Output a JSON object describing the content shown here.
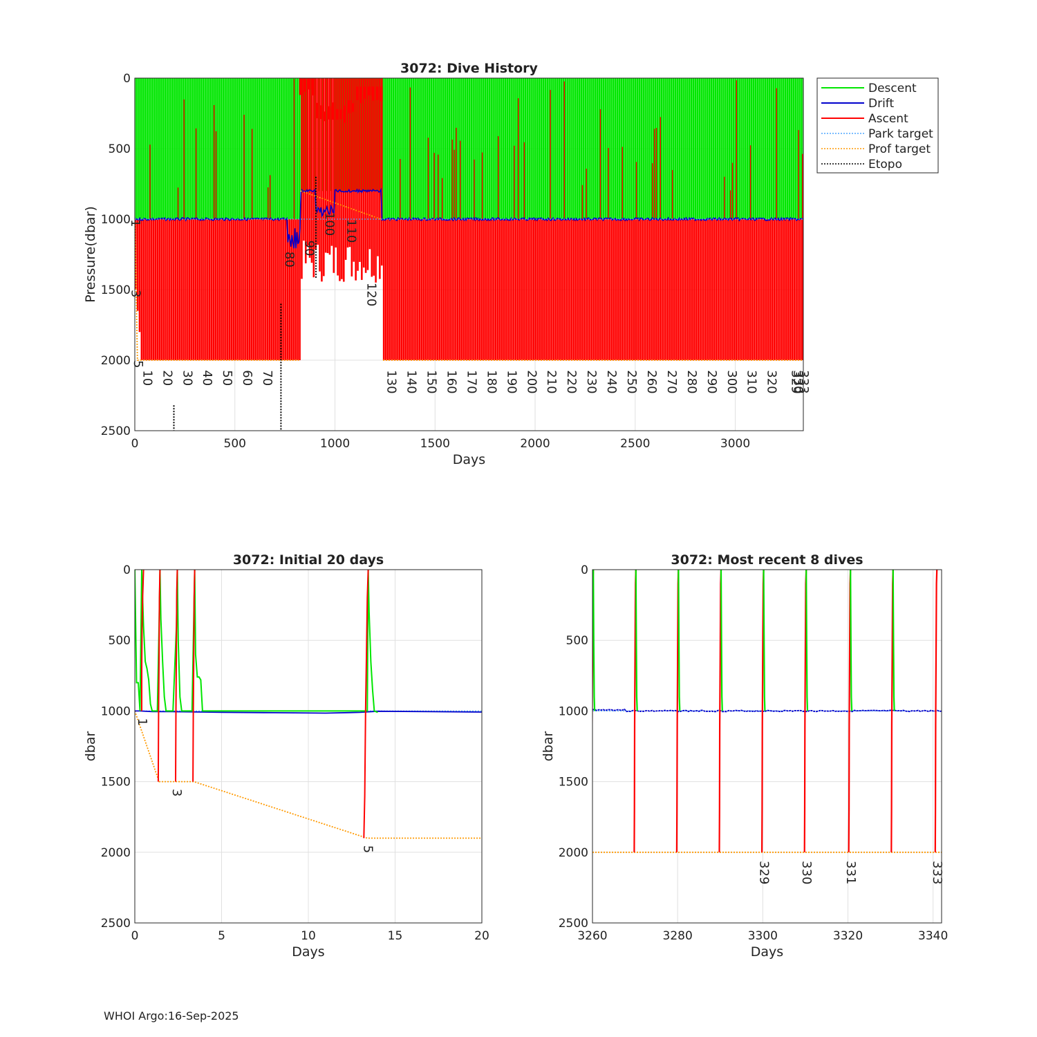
{
  "footer": "WHOI Argo:16-Sep-2025",
  "colors": {
    "descent": "#00e600",
    "drift": "#0000cc",
    "ascent": "#ff0000",
    "park_target": "#4da6ff",
    "prof_target": "#ff9900",
    "etopo": "#000000",
    "grid": "#e0e0e0"
  },
  "legend": [
    {
      "label": "Descent",
      "key": "descent",
      "dash": "solid"
    },
    {
      "label": "Drift",
      "key": "drift",
      "dash": "solid"
    },
    {
      "label": "Ascent",
      "key": "ascent",
      "dash": "solid"
    },
    {
      "label": "Park target",
      "key": "park_target",
      "dash": "dotted"
    },
    {
      "label": "Prof target",
      "key": "prof_target",
      "dash": "dotted"
    },
    {
      "label": "Etopo",
      "key": "etopo",
      "dash": "dotted"
    }
  ],
  "chart_data": [
    {
      "type": "line",
      "title": "3072: Dive History",
      "xlabel": "Days",
      "ylabel": "Pressure(dbar)",
      "xlim": [
        0,
        3340
      ],
      "ylim": [
        0,
        2500
      ],
      "xticks": [
        0,
        500,
        1000,
        1500,
        2000,
        2500,
        3000
      ],
      "yticks": [
        0,
        500,
        1000,
        1500,
        2000,
        2500
      ],
      "cycle_labels": [
        {
          "text": "1",
          "x": 0,
          "y": 1000
        },
        {
          "text": "3",
          "x": 2,
          "y": 1500
        },
        {
          "text": "5",
          "x": 13,
          "y": 2000
        },
        {
          "text": "10",
          "x": 60,
          "y": 2070
        },
        {
          "text": "20",
          "x": 160,
          "y": 2070
        },
        {
          "text": "30",
          "x": 260,
          "y": 2070
        },
        {
          "text": "40",
          "x": 360,
          "y": 2070
        },
        {
          "text": "50",
          "x": 460,
          "y": 2070
        },
        {
          "text": "60",
          "x": 560,
          "y": 2070
        },
        {
          "text": "70",
          "x": 660,
          "y": 2070
        },
        {
          "text": "80",
          "x": 770,
          "y": 1230
        },
        {
          "text": "90",
          "x": 870,
          "y": 1150
        },
        {
          "text": "100",
          "x": 970,
          "y": 950
        },
        {
          "text": "110",
          "x": 1080,
          "y": 1000
        },
        {
          "text": "120",
          "x": 1180,
          "y": 1450
        },
        {
          "text": "130",
          "x": 1280,
          "y": 2070
        },
        {
          "text": "140",
          "x": 1380,
          "y": 2070
        },
        {
          "text": "150",
          "x": 1480,
          "y": 2070
        },
        {
          "text": "160",
          "x": 1580,
          "y": 2070
        },
        {
          "text": "170",
          "x": 1680,
          "y": 2070
        },
        {
          "text": "180",
          "x": 1780,
          "y": 2070
        },
        {
          "text": "190",
          "x": 1880,
          "y": 2070
        },
        {
          "text": "200",
          "x": 1980,
          "y": 2070
        },
        {
          "text": "210",
          "x": 2080,
          "y": 2070
        },
        {
          "text": "220",
          "x": 2180,
          "y": 2070
        },
        {
          "text": "230",
          "x": 2280,
          "y": 2070
        },
        {
          "text": "240",
          "x": 2380,
          "y": 2070
        },
        {
          "text": "250",
          "x": 2480,
          "y": 2070
        },
        {
          "text": "260",
          "x": 2580,
          "y": 2070
        },
        {
          "text": "270",
          "x": 2680,
          "y": 2070
        },
        {
          "text": "280",
          "x": 2780,
          "y": 2070
        },
        {
          "text": "290",
          "x": 2880,
          "y": 2070
        },
        {
          "text": "300",
          "x": 2980,
          "y": 2070
        },
        {
          "text": "310",
          "x": 3080,
          "y": 2070
        },
        {
          "text": "320",
          "x": 3180,
          "y": 2070
        },
        {
          "text": "329",
          "x": 3300,
          "y": 2070
        },
        {
          "text": "330",
          "x": 3310,
          "y": 2070
        },
        {
          "text": "333",
          "x": 3340,
          "y": 2070
        }
      ],
      "series": {
        "park_target_dbar": 1000,
        "prof_target_dbar_segments": [
          {
            "x": [
              0,
              13,
              820
            ],
            "y": [
              1000,
              2000,
              2000
            ]
          },
          {
            "x": [
              830,
              1230
            ],
            "y": [
              800,
              1000
            ]
          },
          {
            "x": [
              1240,
              3340
            ],
            "y": [
              2000,
              2000
            ]
          }
        ],
        "cycle_interval_days": 10,
        "drift_depth_normal": 1000,
        "shallow_drift_range_days": [
          830,
          1230
        ],
        "shallow_drift_depth": 800,
        "profile_depth_normal": 2000,
        "profile_depth_shallow": 1450,
        "etopo_segments": [
          {
            "x": [
              195,
              195
            ],
            "y": [
              2320,
              2500
            ]
          },
          {
            "x": [
              730,
              730
            ],
            "y": [
              1600,
              2500
            ]
          },
          {
            "x": [
              905,
              905
            ],
            "y": [
              700,
              1420
            ]
          }
        ]
      }
    },
    {
      "type": "line",
      "title": "3072: Initial 20 days",
      "xlabel": "Days",
      "ylabel": "dbar",
      "xlim": [
        0,
        20
      ],
      "ylim": [
        0,
        2500
      ],
      "xticks": [
        0,
        5,
        10,
        15,
        20
      ],
      "yticks": [
        0,
        500,
        1000,
        1500,
        2000,
        2500
      ],
      "cycle_labels": [
        {
          "text": "1",
          "x": 0.4,
          "y": 1050
        },
        {
          "text": "3",
          "x": 2.4,
          "y": 1550
        },
        {
          "text": "5",
          "x": 13.4,
          "y": 1950
        }
      ],
      "series": {
        "descent_x": [
          0.0,
          0.1,
          0.2,
          0.3,
          0.4,
          0.5,
          0.6,
          0.7,
          0.8,
          0.9,
          1.0,
          1.1,
          1.2,
          1.3,
          1.4,
          1.45,
          1.5,
          1.6,
          1.7,
          1.8,
          2.0,
          2.2,
          2.4,
          2.45,
          2.5,
          2.6,
          2.7,
          2.8,
          3.0,
          3.3,
          3.45,
          3.5,
          3.6,
          3.7,
          3.8,
          3.9,
          4.0,
          4.1,
          13.4,
          13.45,
          13.5,
          13.6,
          13.7,
          13.8,
          14.0
        ],
        "descent_y": [
          0,
          800,
          800,
          1000,
          0,
          400,
          650,
          700,
          780,
          950,
          1000,
          1000,
          1000,
          1000,
          400,
          0,
          350,
          650,
          900,
          1000,
          1000,
          1000,
          400,
          0,
          500,
          900,
          1000,
          1000,
          1000,
          1000,
          0,
          600,
          760,
          760,
          780,
          1000,
          1000,
          1000,
          1000,
          0,
          300,
          650,
          850,
          1000,
          1010
        ],
        "drift_x": [
          0.0,
          0.3,
          1.0,
          2.0,
          4.0,
          5.0,
          8.0,
          11.0,
          13.0,
          14.0,
          17.0,
          20.0
        ],
        "drift_y": [
          1000,
          1000,
          1005,
          1005,
          1008,
          1010,
          1012,
          1015,
          1010,
          1002,
          1005,
          1008
        ],
        "ascent_profiles": [
          {
            "x": [
              0.4,
              0.4,
              0.42,
              0.45,
              0.5
            ],
            "y": [
              1000,
              700,
              400,
              200,
              0
            ]
          },
          {
            "x": [
              1.35,
              1.37,
              1.4,
              1.42,
              1.45
            ],
            "y": [
              1500,
              1000,
              600,
              200,
              0
            ]
          },
          {
            "x": [
              2.35,
              2.37,
              2.4,
              2.42,
              2.45
            ],
            "y": [
              1500,
              1000,
              500,
              150,
              0
            ]
          },
          {
            "x": [
              3.35,
              3.37,
              3.4,
              3.42,
              3.45
            ],
            "y": [
              1500,
              1000,
              600,
              200,
              0
            ]
          },
          {
            "x": [
              13.2,
              13.25,
              13.3,
              13.35,
              13.4,
              13.45
            ],
            "y": [
              1900,
              1600,
              1000,
              600,
              200,
              0
            ]
          }
        ],
        "prof_target_x": [
          0,
          1.4,
          3.4,
          13.4,
          20
        ],
        "prof_target_y": [
          1000,
          1500,
          1500,
          1900,
          1900
        ],
        "park_target_dbar": 1000
      }
    },
    {
      "type": "line",
      "title": "3072: Most recent 8 dives",
      "xlabel": "Days",
      "ylabel": "dbar",
      "xlim": [
        3260,
        3342
      ],
      "ylim": [
        0,
        2500
      ],
      "xticks": [
        3260,
        3280,
        3300,
        3320,
        3340
      ],
      "yticks": [
        0,
        500,
        1000,
        1500,
        2000,
        2500
      ],
      "cycle_labels": [
        {
          "text": "329",
          "x": 3300.2,
          "y": 2060
        },
        {
          "text": "330",
          "x": 3310.2,
          "y": 2060
        },
        {
          "text": "331",
          "x": 3320.6,
          "y": 2060
        },
        {
          "text": "333",
          "x": 3340.9,
          "y": 2060
        }
      ],
      "series": {
        "surface_days": [
          3260.2,
          3270.2,
          3280.2,
          3290.2,
          3300.2,
          3310.2,
          3320.6,
          3330.6,
          3340.9
        ],
        "drift_depth": 1000,
        "profile_depth": 2000,
        "prof_target_dbar": 2000,
        "park_target_dbar": 1000
      }
    }
  ]
}
